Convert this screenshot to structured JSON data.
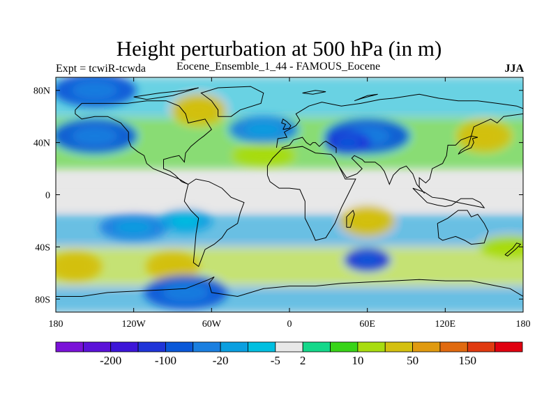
{
  "title": "Height perturbation at 500 hPa (in m)",
  "subtitle_left": "Expt = tcwiR-tcwda",
  "subtitle_center": "Eocene_Ensemble_1_44 - FAMOUS_Eocene",
  "subtitle_right": "JJA",
  "colors": {
    "bins": [
      "#7a12d8",
      "#5b12d8",
      "#3d16d8",
      "#1f35d8",
      "#0a58d8",
      "#1a7fe0",
      "#0a9fe0",
      "#00bfe0",
      "#e8e8e8",
      "#14d88a",
      "#38d418",
      "#a8dc10",
      "#d4c010",
      "#e09a10",
      "#e06a10",
      "#e03a10",
      "#e00010"
    ],
    "background": "#e8e8e8",
    "coast": "#000000"
  },
  "chart_data": {
    "type": "heatmap",
    "title": "Height perturbation at 500 hPa (in m)",
    "x_ticks": [
      "180",
      "120W",
      "60W",
      "0",
      "60E",
      "120E",
      "180"
    ],
    "y_ticks": [
      "80N",
      "40N",
      "0",
      "40S",
      "80S"
    ],
    "x_range": [
      -180,
      180
    ],
    "y_range": [
      -90,
      90
    ],
    "colorbar": {
      "label_values": [
        "-200",
        "-100",
        "-20",
        "-5",
        "2",
        "10",
        "50",
        "150"
      ],
      "bin_count": 17
    },
    "fields": [
      {
        "lon": -150,
        "lat": 80,
        "level": 4
      },
      {
        "lon": -150,
        "lat": 45,
        "level": 4
      },
      {
        "lon": -70,
        "lat": 65,
        "level": 12
      },
      {
        "lon": -20,
        "lat": 50,
        "level": 5
      },
      {
        "lon": -20,
        "lat": 30,
        "level": 11
      },
      {
        "lon": 60,
        "lat": 45,
        "level": 4
      },
      {
        "lon": 45,
        "lat": 40,
        "level": 3
      },
      {
        "lon": 150,
        "lat": 45,
        "level": 12
      },
      {
        "lon": -120,
        "lat": -25,
        "level": 5
      },
      {
        "lon": -80,
        "lat": -20,
        "level": 6
      },
      {
        "lon": -165,
        "lat": -55,
        "level": 12
      },
      {
        "lon": -90,
        "lat": -55,
        "level": 12
      },
      {
        "lon": 60,
        "lat": -20,
        "level": 12
      },
      {
        "lon": 60,
        "lat": -50,
        "level": 3
      },
      {
        "lon": 170,
        "lat": -40,
        "level": 11
      },
      {
        "lon": -80,
        "lat": -75,
        "level": 4
      }
    ]
  }
}
